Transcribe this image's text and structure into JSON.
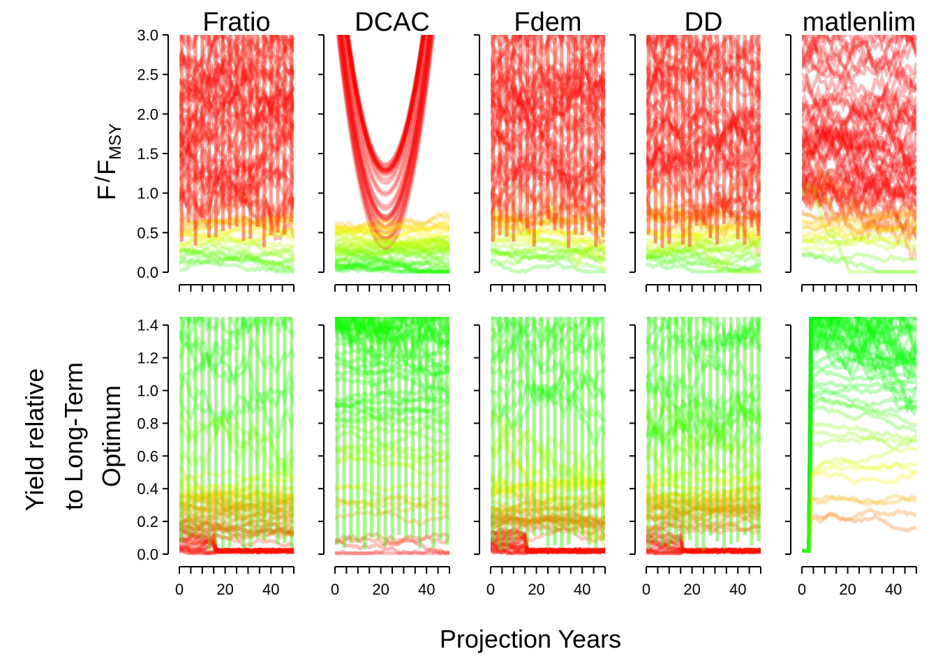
{
  "chart_data": {
    "type": "line",
    "xlabel": "Projection Years",
    "panel_titles": [
      "Fratio",
      "DCAC",
      "Fdem",
      "DD",
      "matlenlim"
    ],
    "x_ticks": [
      0,
      20,
      40
    ],
    "xlim": [
      0,
      50
    ],
    "rows": [
      {
        "metric": "F/FMSY",
        "ylabel_parts": [
          "F",
          "/",
          "F",
          "MSY"
        ],
        "ylim": [
          0,
          3.0
        ],
        "y_ticks": [
          "0.0",
          "0.5",
          "1.0",
          "1.5",
          "2.0",
          "2.5",
          "3.0"
        ],
        "color_scale": "green at low values to red at high values",
        "panels": [
          {
            "mp": "Fratio",
            "low_band": [
              0.05,
              0.7
            ],
            "high_fraction": 0.75,
            "spikes_every": 3,
            "trend": "flat"
          },
          {
            "mp": "DCAC",
            "low_band": [
              0.05,
              0.6
            ],
            "high_fraction": 0.45,
            "spikes_every": 0,
            "trend": "u-shaped"
          },
          {
            "mp": "Fdem",
            "low_band": [
              0.1,
              0.7
            ],
            "high_fraction": 0.8,
            "spikes_every": 3,
            "trend": "flat"
          },
          {
            "mp": "DD",
            "low_band": [
              0.1,
              0.8
            ],
            "high_fraction": 0.6,
            "spikes_every": 3,
            "trend": "flat"
          },
          {
            "mp": "matlenlim",
            "low_band": [
              0.05,
              0.8
            ],
            "high_fraction": 0.8,
            "spikes_every": 0,
            "trend": "flat"
          }
        ]
      },
      {
        "metric": "Yield relative to Long-Term Optimum",
        "ylabel_lines": [
          "Yield relative",
          "to Long-Term",
          "Optimum"
        ],
        "ylim": [
          0,
          1.45
        ],
        "y_ticks": [
          "0.0",
          "0.2",
          "0.4",
          "0.6",
          "0.8",
          "1.0",
          "1.2",
          "1.4"
        ],
        "color_scale": "red at low values to green at high values",
        "panels": [
          {
            "mp": "Fratio",
            "low_band": [
              0.0,
              0.45
            ],
            "high_fraction": 0.2,
            "spikes_every": 3,
            "trend": "crash-after-15"
          },
          {
            "mp": "DCAC",
            "low_band": [
              0.0,
              1.4
            ],
            "high_fraction": 0.45,
            "spikes_every": 3,
            "trend": "spread"
          },
          {
            "mp": "Fdem",
            "low_band": [
              0.0,
              0.4
            ],
            "high_fraction": 0.2,
            "spikes_every": 3,
            "trend": "crash-after-15"
          },
          {
            "mp": "DD",
            "low_band": [
              0.0,
              0.5
            ],
            "high_fraction": 0.25,
            "spikes_every": 3,
            "trend": "crash-after-15"
          },
          {
            "mp": "matlenlim",
            "low_band": [
              0.0,
              1.45
            ],
            "high_fraction": 0.6,
            "spikes_every": 0,
            "trend": "rise-after-5"
          }
        ]
      }
    ]
  }
}
